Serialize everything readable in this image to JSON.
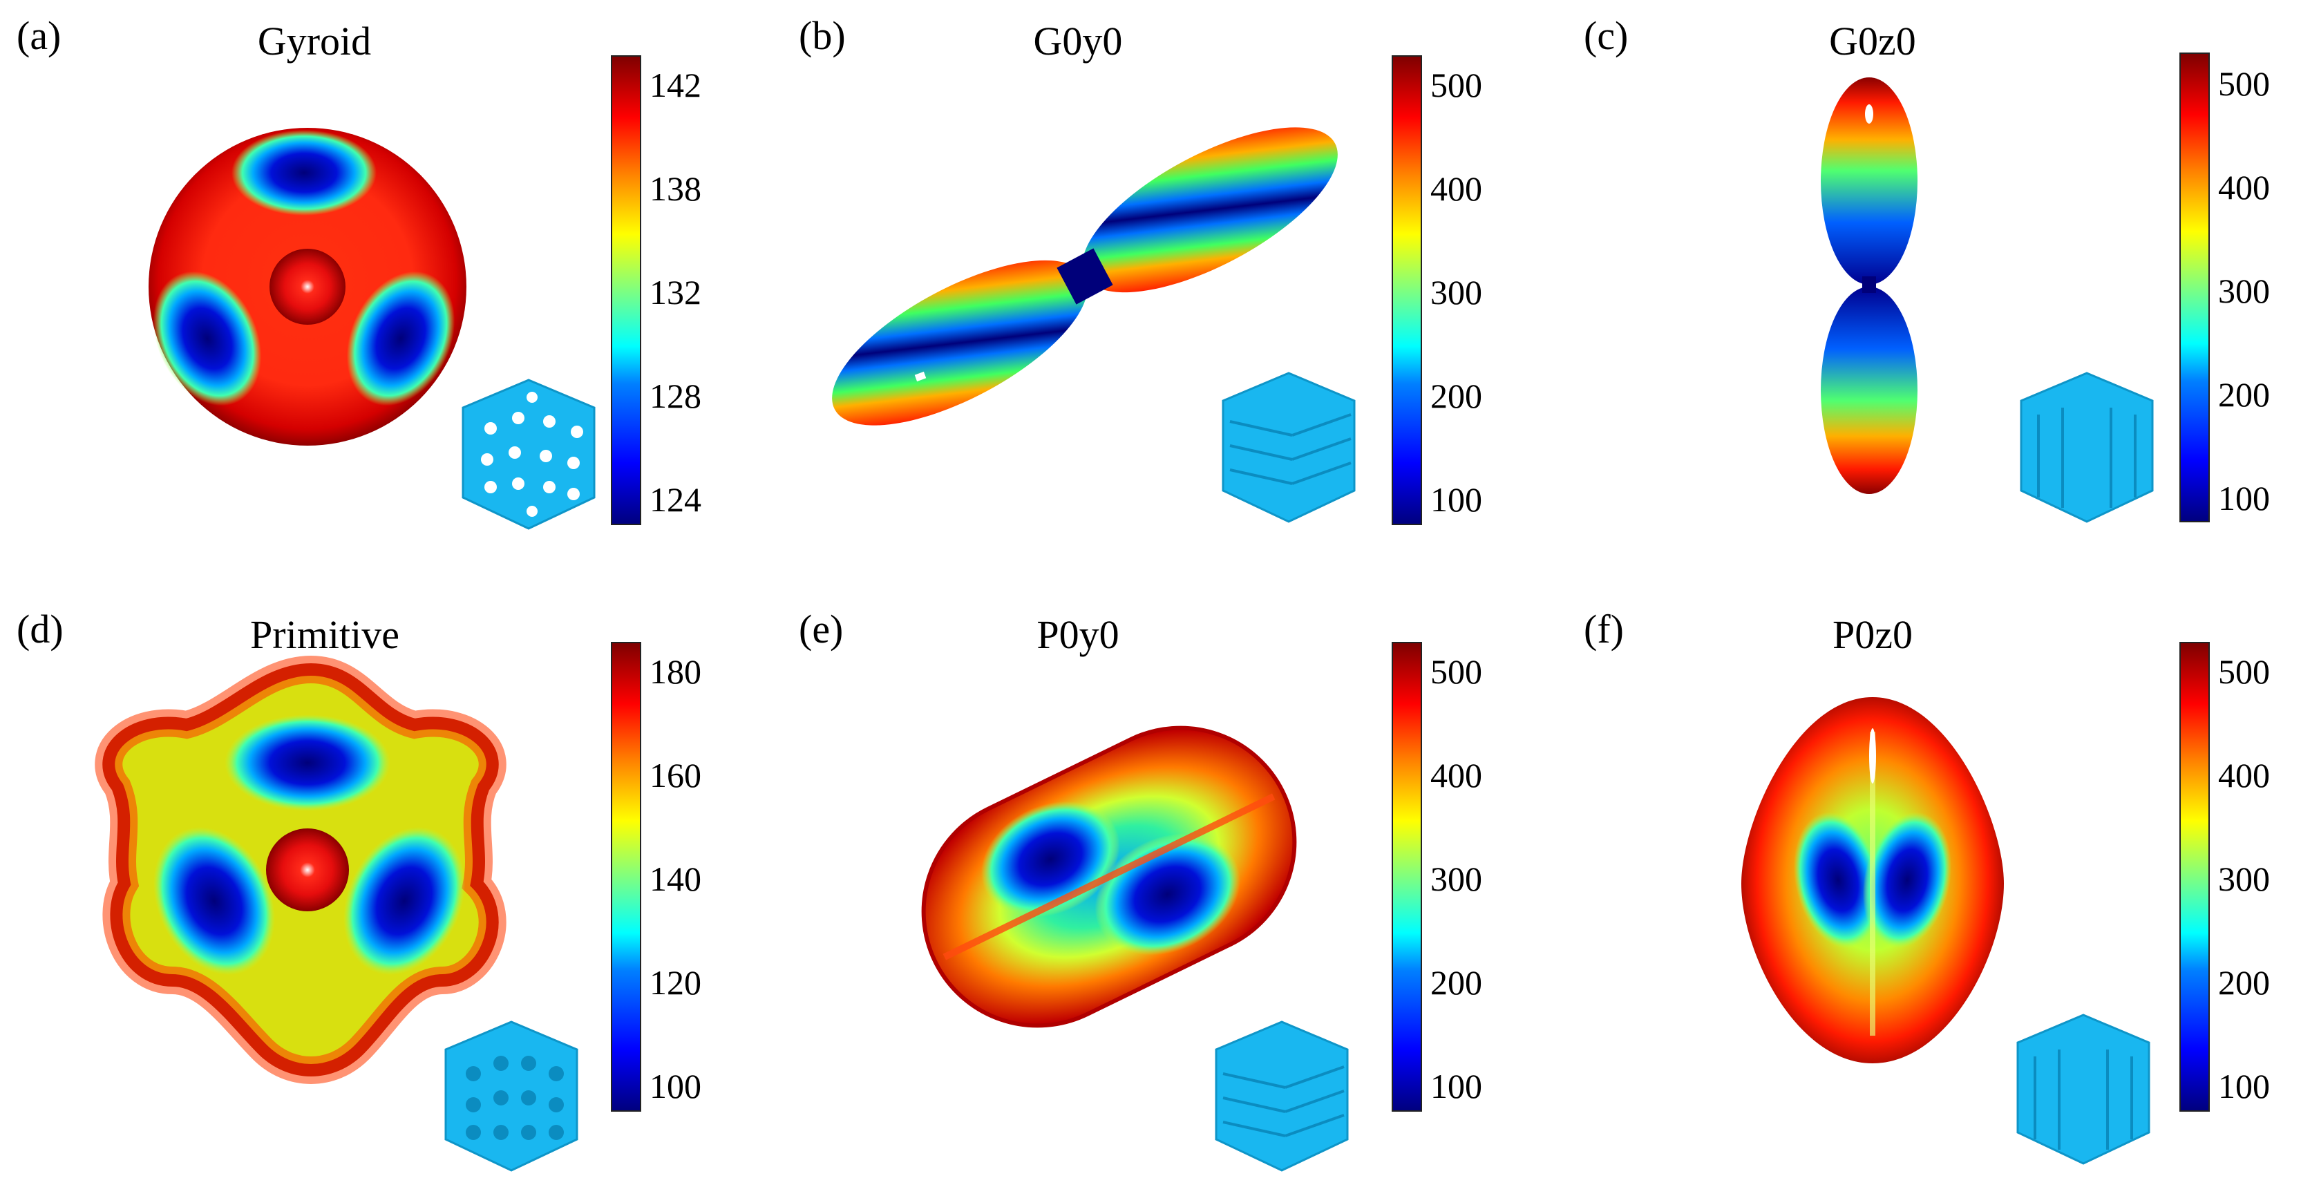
{
  "panels": [
    {
      "label": "(a)",
      "title": "Gyroid",
      "ticks": [
        "142",
        "138",
        "132",
        "128",
        "124"
      ]
    },
    {
      "label": "(b)",
      "title": "G0y0",
      "ticks": [
        "500",
        "400",
        "300",
        "200",
        "100"
      ]
    },
    {
      "label": "(c)",
      "title": "G0z0",
      "ticks": [
        "500",
        "400",
        "300",
        "200",
        "100"
      ]
    },
    {
      "label": "(d)",
      "title": "Primitive",
      "ticks": [
        "180",
        "160",
        "140",
        "120",
        "100"
      ]
    },
    {
      "label": "(e)",
      "title": "P0y0",
      "ticks": [
        "500",
        "400",
        "300",
        "200",
        "100"
      ]
    },
    {
      "label": "(f)",
      "title": "P0z0",
      "ticks": [
        "500",
        "400",
        "300",
        "200",
        "100"
      ]
    }
  ],
  "colormap": "jet",
  "inset_color": "#19b7f0"
}
